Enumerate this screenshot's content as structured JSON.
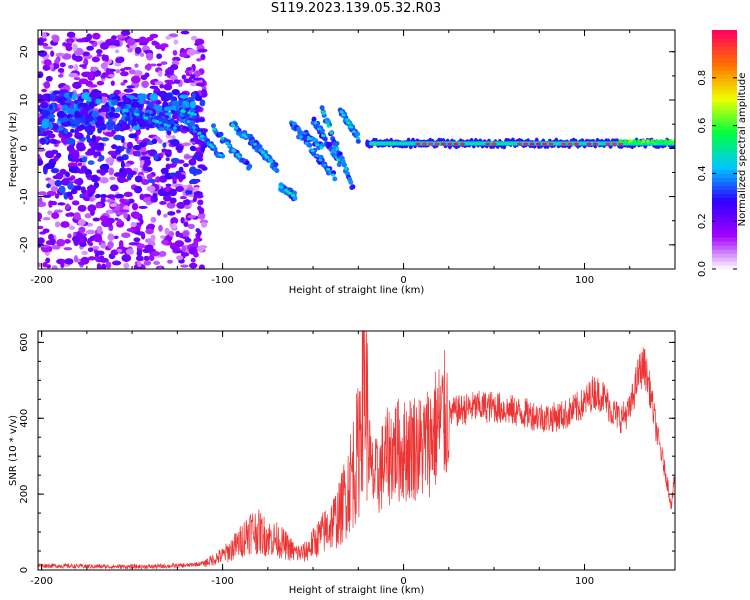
{
  "title": "S119.2023.139.05.32.R03",
  "chart_data": [
    {
      "type": "heatmap",
      "xlabel": "Height of straight line (km)",
      "ylabel": "Frequency (Hz)",
      "xlim": [
        -202,
        150
      ],
      "ylim": [
        -25,
        24.5
      ],
      "x_ticks": [
        -200,
        -100,
        0,
        100
      ],
      "x_tick_labels": [
        "-200",
        "-100",
        "0",
        "100"
      ],
      "y_ticks": [
        -20,
        -10,
        0,
        10,
        20
      ],
      "y_tick_labels": [
        "-20",
        "-10",
        "0",
        "10",
        "20"
      ],
      "colorbar": {
        "label": "Normalized spectral amplitude",
        "range": [
          0,
          1
        ],
        "ticks": [
          0,
          0.2,
          0.4,
          0.6,
          0.8
        ],
        "tick_labels": [
          "0.0",
          "0.2",
          "0.4",
          "0.6",
          "0.8"
        ],
        "colormap": [
          "#ffffff",
          "#a000ff",
          "#3000ff",
          "#00c8ff",
          "#00ff40",
          "#f0ff00",
          "#ff7000",
          "#ff0060"
        ]
      },
      "features": [
        {
          "description": "diffuse scatter",
          "x_range": [
            -202,
            -110
          ],
          "freq_range": [
            -25,
            24
          ]
        },
        {
          "description": "descending streaks",
          "x_range": [
            -160,
            -25
          ],
          "freq_range": [
            -12,
            10
          ]
        },
        {
          "description": "steady tone",
          "x_range": [
            -20,
            150
          ],
          "freq": 1
        }
      ]
    },
    {
      "type": "line",
      "xlabel": "Height of straight line (km)",
      "ylabel": "SNR (10 * v/v)",
      "xlim": [
        -202,
        150
      ],
      "ylim": [
        0,
        630
      ],
      "x_ticks": [
        -200,
        -100,
        0,
        100
      ],
      "x_tick_labels": [
        "-200",
        "-100",
        "0",
        "100"
      ],
      "y_ticks": [
        0,
        200,
        400,
        600
      ],
      "y_tick_labels": [
        "0",
        "200",
        "400",
        "600"
      ],
      "line_color": "#ee3333",
      "x": [
        -202,
        -180,
        -160,
        -140,
        -120,
        -110,
        -100,
        -95,
        -90,
        -85,
        -80,
        -75,
        -70,
        -65,
        -60,
        -55,
        -50,
        -45,
        -40,
        -35,
        -30,
        -25,
        -22,
        -20,
        -18,
        -15,
        -10,
        -5,
        0,
        5,
        10,
        15,
        20,
        25,
        30,
        40,
        50,
        60,
        70,
        80,
        90,
        100,
        105,
        110,
        115,
        120,
        125,
        130,
        133,
        136,
        140,
        145,
        148,
        150
      ],
      "y": [
        12,
        10,
        9,
        9,
        12,
        18,
        38,
        55,
        75,
        105,
        100,
        85,
        80,
        65,
        45,
        45,
        70,
        95,
        120,
        150,
        230,
        310,
        560,
        400,
        250,
        240,
        290,
        320,
        310,
        330,
        320,
        350,
        390,
        410,
        420,
        430,
        430,
        420,
        410,
        400,
        410,
        440,
        470,
        460,
        420,
        400,
        420,
        520,
        540,
        480,
        360,
        250,
        170,
        250
      ]
    }
  ]
}
